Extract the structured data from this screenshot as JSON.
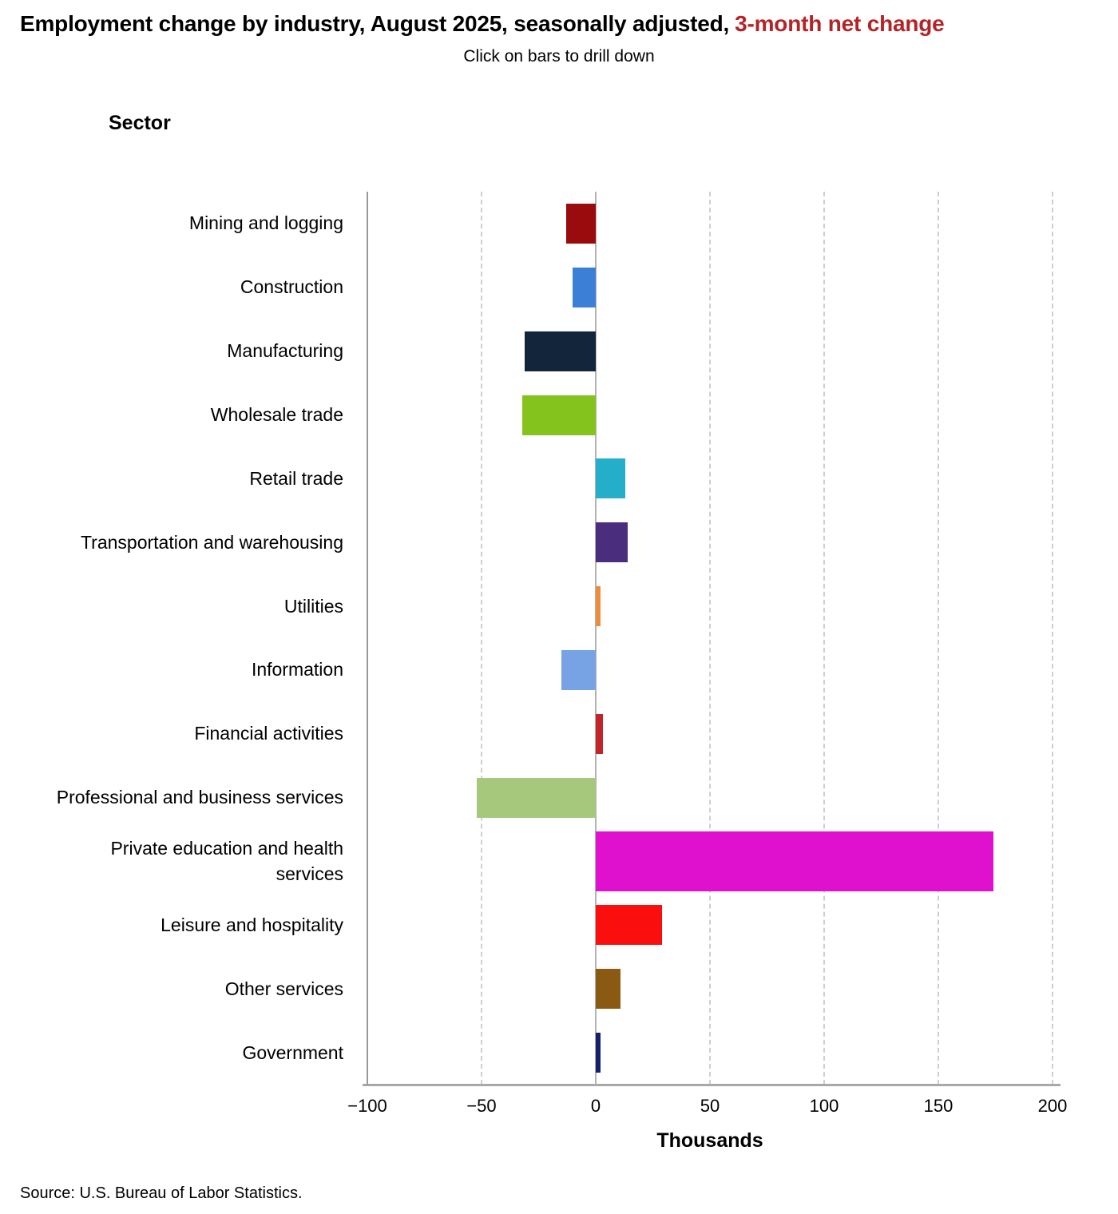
{
  "title": {
    "main": "Employment change by industry, August 2025, seasonally adjusted,",
    "highlight": "3-month net change"
  },
  "subtitle": "Click on bars to drill down",
  "axis": {
    "sector_header": "Sector",
    "x_label": "Thousands",
    "x_ticks": [
      "−100",
      "−50",
      "0",
      "50",
      "100",
      "150",
      "200"
    ],
    "x_tick_values": [
      -100,
      -50,
      0,
      50,
      100,
      150,
      200
    ]
  },
  "source": "Source: U.S. Bureau of Labor Statistics.",
  "colors": {
    "title_highlight": "#b52327",
    "gridline": "#cfcfcf",
    "zero_line": "#b3b3b3",
    "y_axis_line": "#999999",
    "bottom_axis": "#a8a8a8"
  },
  "chart_data": {
    "type": "bar",
    "orientation": "horizontal",
    "title": "Employment change by industry, August 2025, seasonally adjusted, 3-month net change",
    "subtitle": "Click on bars to drill down",
    "xlabel": "Thousands",
    "ylabel": "Sector",
    "unit": "thousands of jobs",
    "xlim": [
      -100,
      200
    ],
    "x_gridlines": [
      -50,
      50,
      100,
      150,
      200
    ],
    "grid": "dashed-vertical",
    "legend": "none",
    "categories": [
      "Mining and logging",
      "Construction",
      "Manufacturing",
      "Wholesale trade",
      "Retail trade",
      "Transportation and warehousing",
      "Utilities",
      "Information",
      "Financial activities",
      "Professional and business services",
      "Private education and health services",
      "Leisure and hospitality",
      "Other services",
      "Government"
    ],
    "values": [
      -13,
      -10,
      -31,
      -32,
      13,
      14,
      2,
      -15,
      3,
      -52,
      174,
      29,
      11,
      2
    ],
    "bar_colors": [
      "#9a0b0d",
      "#3b80d6",
      "#13253b",
      "#84c31d",
      "#25aeca",
      "#4b2d7e",
      "#ef8c3c",
      "#77a2e3",
      "#c02529",
      "#a5c87d",
      "#df10ce",
      "#fb0e0e",
      "#8b5a12",
      "#12206d"
    ]
  }
}
